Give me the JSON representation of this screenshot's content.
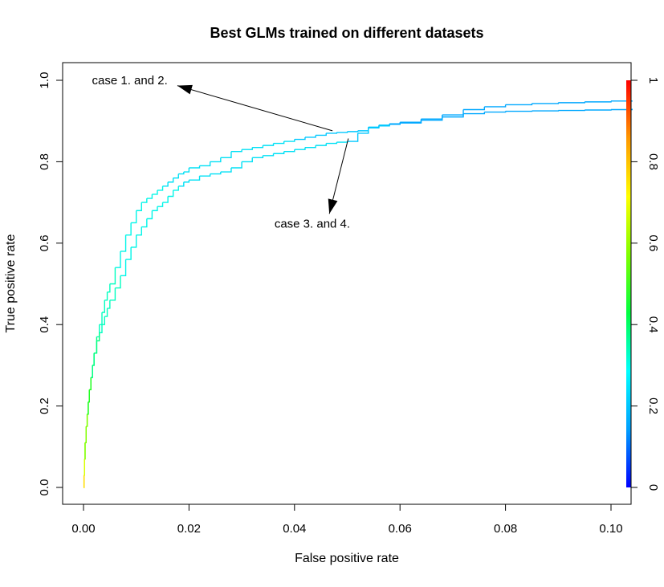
{
  "chart_data": {
    "type": "line",
    "title": "Best GLMs trained on different datasets",
    "xlabel": "False positive rate",
    "ylabel": "True positive rate",
    "xlim": [
      0,
      0.104
    ],
    "ylim": [
      0,
      1
    ],
    "x_ticks": [
      "0.00",
      "0.02",
      "0.04",
      "0.06",
      "0.08",
      "0.10"
    ],
    "y_ticks": [
      "0.0",
      "0.2",
      "0.4",
      "0.6",
      "0.8",
      "1.0"
    ],
    "grid": false,
    "colorbar": {
      "ticks": [
        "0",
        "0.2",
        "0.4",
        "0.6",
        "0.8",
        "1"
      ],
      "colors": [
        "#0000ff",
        "#00a0ff",
        "#00ffff",
        "#00ff40",
        "#80ff00",
        "#ffff00",
        "#ff9900",
        "#ff0000"
      ]
    },
    "annotations": [
      {
        "text": "case 1. and 2.",
        "x": 0.0016,
        "y": 0.99
      },
      {
        "text": "case 3. and 4.",
        "x": 0.0362,
        "y": 0.638
      }
    ],
    "arrows": [
      {
        "from": [
          0.0472,
          0.876
        ],
        "to": [
          0.0178,
          0.987
        ]
      },
      {
        "from": [
          0.0502,
          0.857
        ],
        "to": [
          0.0466,
          0.672
        ]
      }
    ],
    "series": [
      {
        "x": [
          0,
          0.0001,
          0.0002,
          0.0003,
          0.0005,
          0.0007,
          0.0009,
          0.0011,
          0.0014,
          0.0017,
          0.002,
          0.0025,
          0.003,
          0.0035,
          0.004,
          0.0045,
          0.005,
          0.006,
          0.007,
          0.008,
          0.009,
          0.01,
          0.011,
          0.012,
          0.013,
          0.014,
          0.015,
          0.016,
          0.017,
          0.018,
          0.019,
          0.02,
          0.022,
          0.024,
          0.026,
          0.028,
          0.03,
          0.032,
          0.034,
          0.036,
          0.038,
          0.04,
          0.042,
          0.044,
          0.046,
          0.048,
          0.05,
          0.052,
          0.054,
          0.056,
          0.058,
          0.06,
          0.064,
          0.068,
          0.072,
          0.076,
          0.08,
          0.085,
          0.09,
          0.095,
          0.1,
          0.104
        ],
        "y": [
          0,
          0.03,
          0.07,
          0.11,
          0.15,
          0.18,
          0.21,
          0.24,
          0.27,
          0.3,
          0.33,
          0.37,
          0.4,
          0.43,
          0.46,
          0.48,
          0.5,
          0.54,
          0.58,
          0.62,
          0.65,
          0.68,
          0.7,
          0.71,
          0.72,
          0.73,
          0.74,
          0.75,
          0.76,
          0.77,
          0.775,
          0.785,
          0.79,
          0.8,
          0.81,
          0.825,
          0.83,
          0.835,
          0.84,
          0.845,
          0.85,
          0.855,
          0.86,
          0.865,
          0.87,
          0.872,
          0.874,
          0.876,
          0.885,
          0.89,
          0.893,
          0.897,
          0.905,
          0.915,
          0.928,
          0.935,
          0.94,
          0.943,
          0.945,
          0.947,
          0.949,
          0.95
        ]
      },
      {
        "x": [
          0,
          0.0001,
          0.0002,
          0.0003,
          0.0005,
          0.0007,
          0.0009,
          0.0011,
          0.0014,
          0.0017,
          0.002,
          0.0025,
          0.003,
          0.0035,
          0.004,
          0.0045,
          0.005,
          0.006,
          0.007,
          0.008,
          0.009,
          0.01,
          0.011,
          0.012,
          0.013,
          0.014,
          0.015,
          0.016,
          0.017,
          0.018,
          0.019,
          0.02,
          0.022,
          0.024,
          0.026,
          0.028,
          0.03,
          0.032,
          0.034,
          0.036,
          0.038,
          0.04,
          0.042,
          0.044,
          0.046,
          0.048,
          0.05,
          0.052,
          0.054,
          0.056,
          0.058,
          0.06,
          0.064,
          0.068,
          0.072,
          0.076,
          0.08,
          0.085,
          0.09,
          0.095,
          0.1,
          0.104
        ],
        "y": [
          0,
          0.03,
          0.07,
          0.11,
          0.15,
          0.18,
          0.21,
          0.24,
          0.27,
          0.3,
          0.33,
          0.36,
          0.38,
          0.4,
          0.42,
          0.44,
          0.46,
          0.49,
          0.52,
          0.56,
          0.59,
          0.62,
          0.64,
          0.66,
          0.68,
          0.69,
          0.7,
          0.715,
          0.73,
          0.74,
          0.75,
          0.755,
          0.765,
          0.77,
          0.775,
          0.785,
          0.8,
          0.81,
          0.815,
          0.82,
          0.825,
          0.83,
          0.835,
          0.84,
          0.845,
          0.848,
          0.85,
          0.87,
          0.883,
          0.888,
          0.892,
          0.895,
          0.902,
          0.91,
          0.918,
          0.922,
          0.924,
          0.925,
          0.926,
          0.927,
          0.928,
          0.93
        ]
      }
    ]
  }
}
